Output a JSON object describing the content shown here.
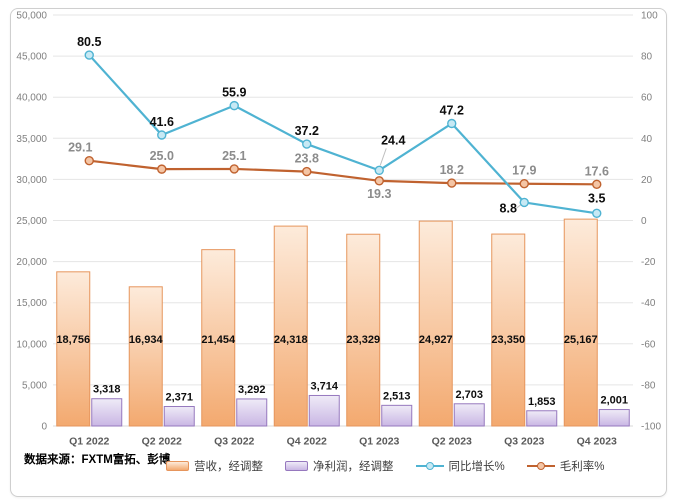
{
  "source_note": "数据来源：FXTM富拓、彭博",
  "colors": {
    "revenue_bar_top": "#FDEBDB",
    "revenue_bar_bottom": "#F3A96F",
    "revenue_bar_border": "#E6955C",
    "profit_bar_top": "#EFEBF7",
    "profit_bar_bottom": "#C9B6E4",
    "profit_bar_border": "#9678BE",
    "growth_line": "#4FB3D2",
    "growth_marker_fill": "#C7E9F4",
    "margin_line": "#C0622F",
    "margin_marker_fill": "#F4C5A5",
    "gridline": "#E5E5E5",
    "baseline": "#D9D9D9",
    "leader_line": "#BFBFBF",
    "frame_border": "#CFCFCF"
  },
  "chart_data": {
    "type": "combo",
    "title": "",
    "categories": [
      "Q1 2022",
      "Q2 2022",
      "Q3 2022",
      "Q4 2022",
      "Q1 2023",
      "Q2 2023",
      "Q3 2023",
      "Q4 2023"
    ],
    "series": [
      {
        "name": "营收，经调整",
        "type": "bar",
        "axis": "left",
        "values": [
          18756,
          16934,
          21454,
          24318,
          23329,
          24927,
          23350,
          25167
        ],
        "labels": [
          "18,756",
          "16,934",
          "21,454",
          "24,318",
          "23,329",
          "24,927",
          "23,350",
          "25,167"
        ]
      },
      {
        "name": "净利润，经调整",
        "type": "bar",
        "axis": "left",
        "values": [
          3318,
          2371,
          3292,
          3714,
          2513,
          2703,
          1853,
          2001
        ],
        "labels": [
          "3,318",
          "2,371",
          "3,292",
          "3,714",
          "2,513",
          "2,703",
          "1,853",
          "2,001"
        ]
      },
      {
        "name": "同比增长%",
        "type": "line",
        "axis": "right",
        "values": [
          80.5,
          41.6,
          55.9,
          37.2,
          24.4,
          47.2,
          8.8,
          3.5
        ],
        "labels": [
          "80.5",
          "41.6",
          "55.9",
          "37.2",
          "24.4",
          "47.2",
          "8.8",
          "3.5"
        ]
      },
      {
        "name": "毛利率%",
        "type": "line",
        "axis": "right",
        "values": [
          29.1,
          25.0,
          25.1,
          23.8,
          19.3,
          18.2,
          17.9,
          17.6
        ],
        "labels": [
          "29.1",
          "25.0",
          "25.1",
          "23.8",
          "19.3",
          "18.2",
          "17.9",
          "17.6"
        ]
      }
    ],
    "left_axis": {
      "min": 0,
      "max": 50000,
      "step": 5000,
      "tick_labels": [
        "0",
        "5,000",
        "10,000",
        "15,000",
        "20,000",
        "25,000",
        "30,000",
        "35,000",
        "40,000",
        "45,000",
        "50,000"
      ]
    },
    "right_axis": {
      "min": -100,
      "max": 100,
      "step": 20,
      "tick_labels": [
        "-100",
        "-80",
        "-60",
        "-40",
        "-20",
        "0",
        "20",
        "40",
        "60",
        "80",
        "100"
      ]
    },
    "grid": true,
    "legend_position": "bottom"
  }
}
